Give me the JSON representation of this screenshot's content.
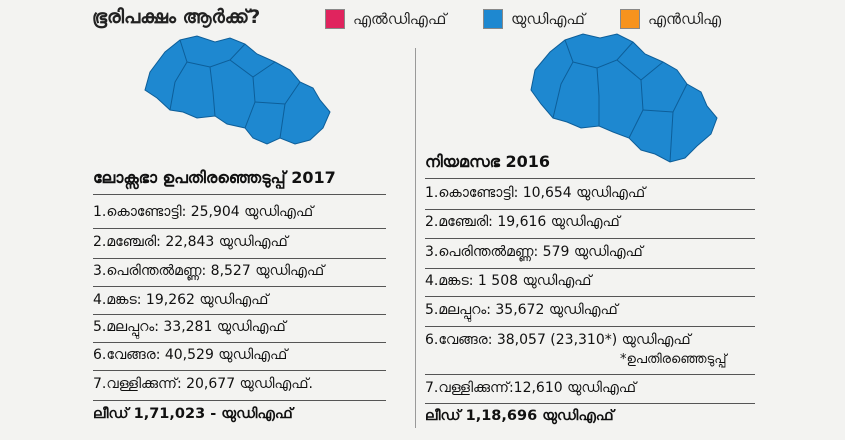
{
  "header": {
    "title": "ഭൂരിപക്ഷം ആർക്ക്?",
    "legend": [
      {
        "label": "എൽഡിഎഫ്",
        "color": "#e0245e"
      },
      {
        "label": "യുഡിഎഫ്",
        "color": "#1e88d0"
      },
      {
        "label": "എൻഡിഎ",
        "color": "#f7931e"
      }
    ]
  },
  "map_color": "#1e88d0",
  "left": {
    "title": "ലോക്സഭാ ഉപതിരഞ്ഞെടുപ്പ് 2017",
    "rows": [
      "1.കൊണ്ടോട്ടി: 25,904 യുഡിഎഫ്",
      "2.മഞ്ചേരി: 22,843 യുഡിഎഫ്",
      "3.പെരിന്തൽമണ്ണ: 8,527 യുഡിഎഫ്",
      "4.മങ്കട: 19,262 യുഡിഎഫ്",
      "5.മലപ്പുറം: 33,281 യുഡിഎഫ്",
      "6.വേങ്ങര: 40,529 യുഡിഎഫ്",
      "7.വള്ളിക്കുന്ന്: 20,677 യുഡിഎഫ്."
    ],
    "lead": "ലീഡ് 1,71,023 - യുഡിഎഫ്"
  },
  "right": {
    "title": "നിയമസഭ 2016",
    "rows": [
      "1.കൊണ്ടോട്ടി: 10,654 യുഡിഎഫ്",
      "2.മഞ്ചേരി: 19,616 യുഡിഎഫ്",
      "3.പെരിന്തൽമണ്ണ: 579 യുഡിഎഫ്",
      "4.മങ്കട: 1 508 യുഡിഎഫ്",
      "5.മലപ്പുറം: 35,672 യുഡിഎഫ്",
      "6.വേങ്ങര: 38,057 (23,310*) യുഡിഎഫ്",
      "7.വള്ളിക്കുന്ന്:12,610 യുഡിഎഫ്"
    ],
    "footnote": "*ഉപതിരഞ്ഞെടുപ്പ്",
    "lead": "ലീഡ് 1,18,696 യുഡിഎഫ്"
  }
}
